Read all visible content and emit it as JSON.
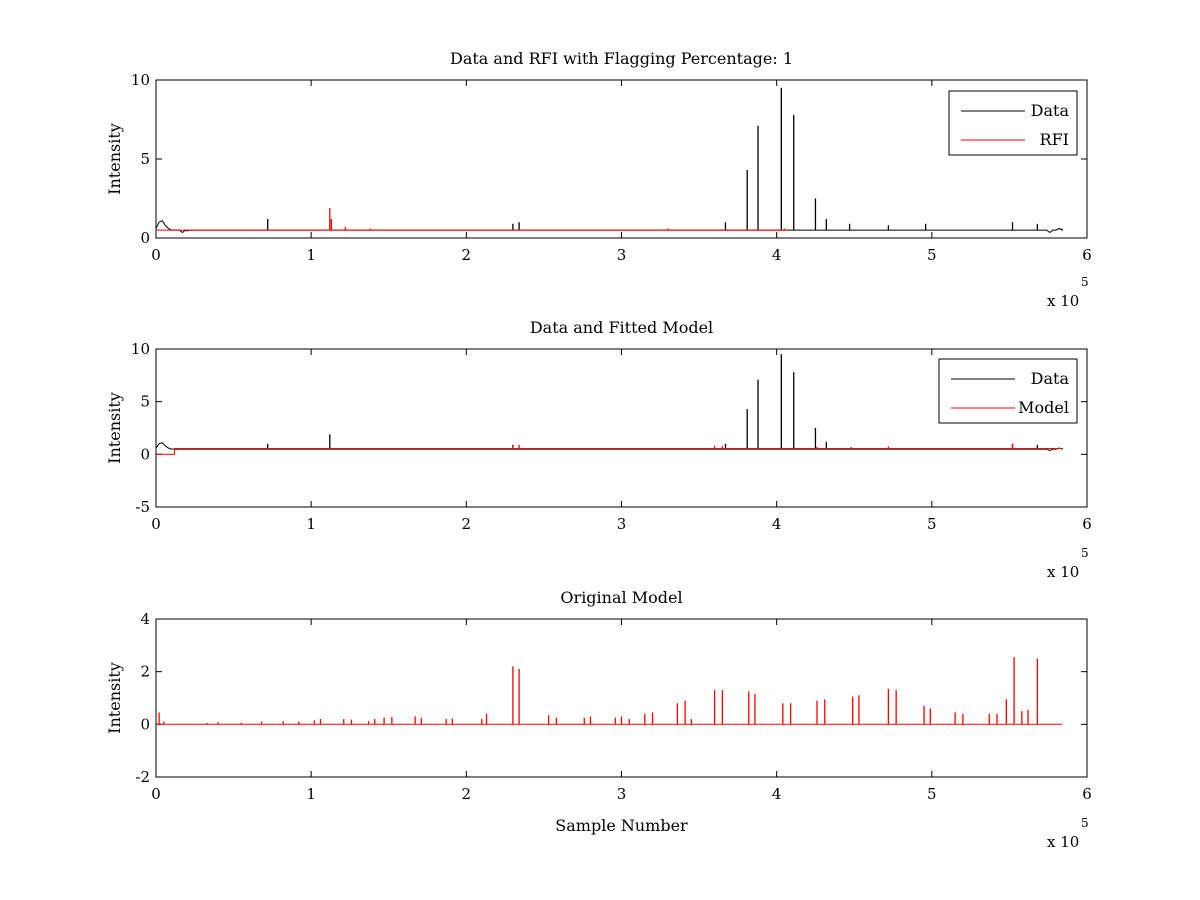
{
  "figure": {
    "background": "#ffffff"
  },
  "chart_data": [
    {
      "type": "line",
      "title": "Data and RFI with Flagging Percentage: 1",
      "xlabel": "",
      "ylabel": "Intensity",
      "xlim": [
        0,
        6
      ],
      "ylim": [
        0,
        10
      ],
      "xticks": [
        "0",
        "1",
        "2",
        "3",
        "4",
        "5",
        "6"
      ],
      "yticks": [
        "0",
        "5",
        "10"
      ],
      "x_multiplier": {
        "base": "x 10",
        "exponent": "5"
      },
      "legend": {
        "placement": "top-right",
        "entries": [
          "Data",
          "RFI"
        ]
      },
      "grid": false,
      "series": [
        {
          "name": "Data",
          "color": "#000000",
          "baseline": 0.5,
          "start_bump": [
            [
              0.0,
              0.6
            ],
            [
              0.02,
              1.0
            ],
            [
              0.04,
              1.1
            ],
            [
              0.06,
              0.8
            ],
            [
              0.08,
              0.6
            ],
            [
              0.1,
              0.5
            ]
          ],
          "dips": [
            [
              0.17,
              0.35
            ],
            [
              0.2,
              0.45
            ],
            [
              5.76,
              0.35
            ],
            [
              5.82,
              0.6
            ]
          ],
          "spikes": [
            [
              0.72,
              1.2
            ],
            [
              2.3,
              0.9
            ],
            [
              2.34,
              1.0
            ],
            [
              3.67,
              1.0
            ],
            [
              3.81,
              4.3
            ],
            [
              3.88,
              7.1
            ],
            [
              4.03,
              9.5
            ],
            [
              4.11,
              7.8
            ],
            [
              4.25,
              2.5
            ],
            [
              4.32,
              1.2
            ],
            [
              4.47,
              0.9
            ],
            [
              4.72,
              0.8
            ],
            [
              4.96,
              0.9
            ],
            [
              5.52,
              1.0
            ],
            [
              5.68,
              0.9
            ]
          ],
          "x_end": 5.84
        },
        {
          "name": "RFI",
          "color": "#ff0000",
          "spikes": [
            [
              1.12,
              1.9
            ],
            [
              1.13,
              1.2
            ],
            [
              1.22,
              0.7
            ],
            [
              1.38,
              0.6
            ],
            [
              3.3,
              0.6
            ],
            [
              4.05,
              0.6
            ]
          ],
          "baseline": 0.5
        }
      ]
    },
    {
      "type": "line",
      "title": "Data and Fitted Model",
      "xlabel": "",
      "ylabel": "Intensity",
      "xlim": [
        0,
        6
      ],
      "ylim": [
        -5,
        10
      ],
      "xticks": [
        "0",
        "1",
        "2",
        "3",
        "4",
        "5",
        "6"
      ],
      "yticks": [
        "-5",
        "0",
        "5",
        "10"
      ],
      "x_multiplier": {
        "base": "x 10",
        "exponent": "5"
      },
      "legend": {
        "placement": "top-right",
        "entries": [
          "Data",
          "Model"
        ]
      },
      "grid": false,
      "series": [
        {
          "name": "Data",
          "color": "#000000",
          "baseline": 0.5,
          "start_bump": [
            [
              0.0,
              0.6
            ],
            [
              0.02,
              1.0
            ],
            [
              0.04,
              1.1
            ],
            [
              0.06,
              0.8
            ],
            [
              0.08,
              0.6
            ],
            [
              0.1,
              0.5
            ]
          ],
          "dips": [
            [
              5.76,
              0.35
            ],
            [
              5.82,
              0.6
            ]
          ],
          "spikes": [
            [
              0.72,
              1.0
            ],
            [
              1.12,
              1.9
            ],
            [
              2.3,
              0.9
            ],
            [
              3.67,
              1.0
            ],
            [
              3.81,
              4.3
            ],
            [
              3.88,
              7.1
            ],
            [
              4.03,
              9.5
            ],
            [
              4.11,
              7.8
            ],
            [
              4.25,
              2.5
            ],
            [
              4.32,
              1.2
            ],
            [
              5.52,
              1.0
            ],
            [
              5.68,
              0.9
            ]
          ],
          "x_end": 5.84
        },
        {
          "name": "Model",
          "color": "#ff0000",
          "step": [
            [
              0.0,
              0.0
            ],
            [
              0.12,
              0.0
            ],
            [
              0.12,
              0.55
            ]
          ],
          "baseline": 0.55,
          "spikes": [
            [
              2.3,
              0.8
            ],
            [
              2.34,
              0.9
            ],
            [
              3.6,
              0.8
            ],
            [
              3.65,
              0.8
            ],
            [
              4.26,
              0.7
            ],
            [
              4.48,
              0.7
            ],
            [
              4.72,
              0.75
            ],
            [
              5.52,
              1.0
            ]
          ],
          "x_end": 5.84
        }
      ]
    },
    {
      "type": "line",
      "title": "Original Model",
      "xlabel": "Sample Number",
      "ylabel": "Intensity",
      "xlim": [
        0,
        6
      ],
      "ylim": [
        -2,
        4
      ],
      "xticks": [
        "0",
        "1",
        "2",
        "3",
        "4",
        "5",
        "6"
      ],
      "yticks": [
        "-2",
        "0",
        "2",
        "4"
      ],
      "x_multiplier": {
        "base": "x 10",
        "exponent": "5"
      },
      "grid": false,
      "series": [
        {
          "name": "",
          "color": "#ff0000",
          "baseline": 0.0,
          "x_end": 5.84,
          "spikes": [
            [
              0.02,
              0.45
            ],
            [
              0.05,
              0.1
            ],
            [
              0.33,
              0.05
            ],
            [
              0.4,
              0.08
            ],
            [
              0.55,
              0.06
            ],
            [
              0.68,
              0.1
            ],
            [
              0.82,
              0.12
            ],
            [
              0.92,
              0.1
            ],
            [
              1.02,
              0.15
            ],
            [
              1.06,
              0.2
            ],
            [
              1.21,
              0.2
            ],
            [
              1.26,
              0.18
            ],
            [
              1.37,
              0.12
            ],
            [
              1.41,
              0.2
            ],
            [
              1.47,
              0.25
            ],
            [
              1.52,
              0.28
            ],
            [
              1.67,
              0.3
            ],
            [
              1.71,
              0.25
            ],
            [
              1.87,
              0.2
            ],
            [
              1.91,
              0.22
            ],
            [
              2.1,
              0.2
            ],
            [
              2.13,
              0.4
            ],
            [
              2.3,
              2.2
            ],
            [
              2.34,
              2.1
            ],
            [
              2.53,
              0.35
            ],
            [
              2.58,
              0.25
            ],
            [
              2.76,
              0.25
            ],
            [
              2.8,
              0.3
            ],
            [
              2.96,
              0.25
            ],
            [
              3.0,
              0.3
            ],
            [
              3.05,
              0.2
            ],
            [
              3.15,
              0.4
            ],
            [
              3.2,
              0.45
            ],
            [
              3.36,
              0.8
            ],
            [
              3.41,
              0.9
            ],
            [
              3.45,
              0.2
            ],
            [
              3.6,
              1.3
            ],
            [
              3.65,
              1.3
            ],
            [
              3.82,
              1.25
            ],
            [
              3.86,
              1.15
            ],
            [
              4.04,
              0.8
            ],
            [
              4.09,
              0.8
            ],
            [
              4.26,
              0.9
            ],
            [
              4.31,
              0.95
            ],
            [
              4.49,
              1.05
            ],
            [
              4.53,
              1.1
            ],
            [
              4.72,
              1.35
            ],
            [
              4.77,
              1.3
            ],
            [
              4.95,
              0.7
            ],
            [
              4.99,
              0.6
            ],
            [
              5.15,
              0.45
            ],
            [
              5.2,
              0.4
            ],
            [
              5.37,
              0.4
            ],
            [
              5.42,
              0.4
            ],
            [
              5.48,
              0.95
            ],
            [
              5.53,
              2.55
            ],
            [
              5.58,
              0.5
            ],
            [
              5.62,
              0.55
            ],
            [
              5.68,
              2.5
            ]
          ]
        }
      ]
    }
  ]
}
